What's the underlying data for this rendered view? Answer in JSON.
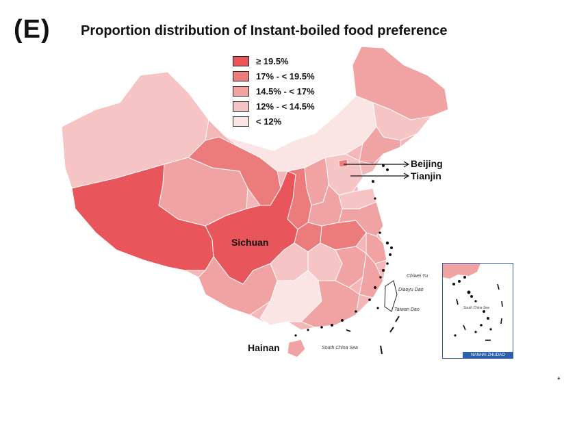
{
  "panel_label": "(E)",
  "title": "Proportion distribution of Instant-boiled food preference",
  "legend": [
    {
      "label": "≥ 19.5%",
      "color": "#e8555a"
    },
    {
      "label": "17% - < 19.5%",
      "color": "#ec7b7c"
    },
    {
      "label": "14.5% - < 17%",
      "color": "#f1a3a3"
    },
    {
      "label": "12% - < 14.5%",
      "color": "#f6c4c4"
    },
    {
      "label": "< 12%",
      "color": "#fbe4e4"
    }
  ],
  "labels": {
    "beijing": "Beijing",
    "tianjin": "Tianjin",
    "sichuan": "Sichuan",
    "hainan": "Hainan"
  },
  "small_labels": {
    "chiwei": "Chiwei Yu",
    "diaoyu": "Diaoyu Dao",
    "taiwan": "Taiwan Dao",
    "scs_main": "South China Sea",
    "scs_inset": "South China Sea"
  },
  "inset_caption": "NANHAI ZHUDAO",
  "footnote_mark": "*",
  "colors": {
    "boundary": "#ffffff",
    "inset_border": "#2b5fa8",
    "island_dots": "#111111"
  }
}
